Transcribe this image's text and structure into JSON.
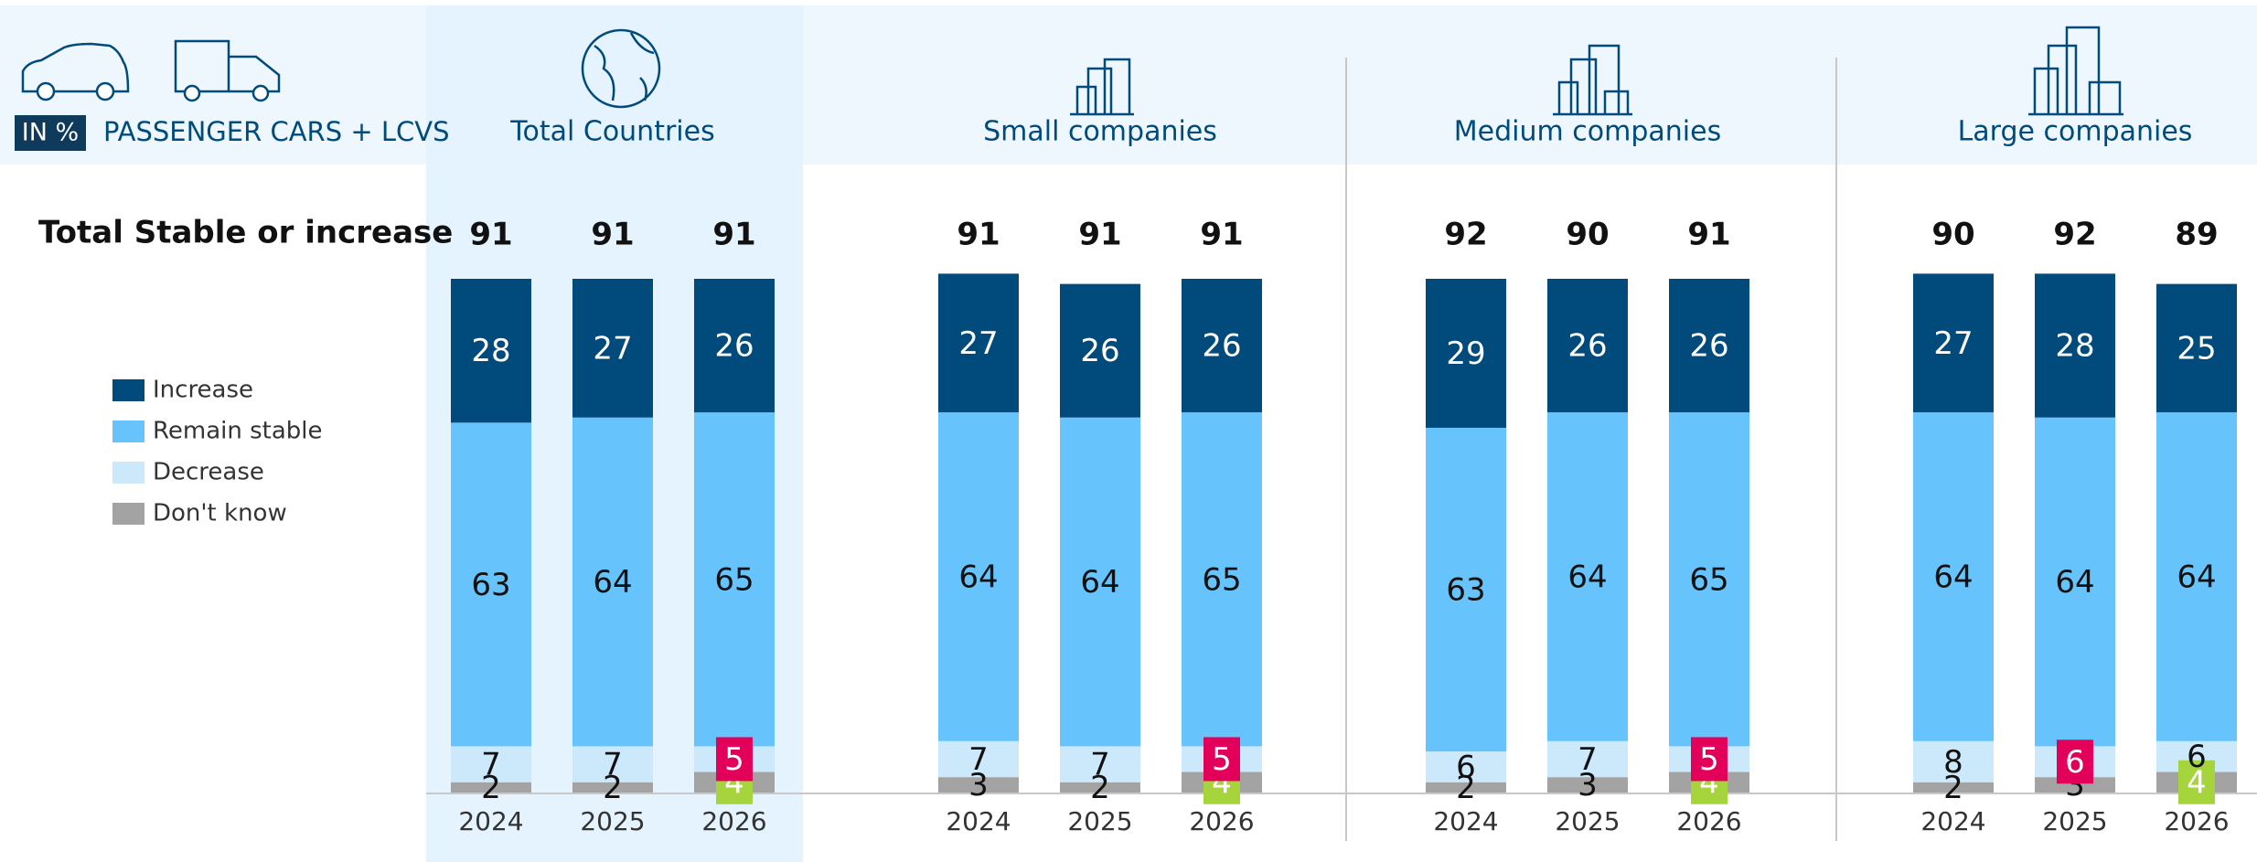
{
  "header": {
    "unit": "IN %",
    "label": "PASSENGER CARS + LCVS",
    "total_label": "Total Stable or increase"
  },
  "chart_data": [
    {
      "type": "bar",
      "title": "Total Countries",
      "categories": [
        "2024",
        "2025",
        "2026"
      ],
      "ylim": [
        0,
        100
      ],
      "totals": [
        91,
        91,
        91
      ],
      "series": [
        {
          "name": "Don't know",
          "color": "#a3a3a3",
          "values": [
            2,
            2,
            4
          ],
          "label_backgrounds": [
            null,
            null,
            "#a6d43c"
          ]
        },
        {
          "name": "Decrease",
          "color": "#cce9fb",
          "values": [
            7,
            7,
            5
          ],
          "label_backgrounds": [
            null,
            null,
            "#e2005a"
          ]
        },
        {
          "name": "Remain stable",
          "color": "#66c3fb",
          "values": [
            63,
            64,
            65
          ]
        },
        {
          "name": "Increase",
          "color": "#004b7c",
          "values": [
            28,
            27,
            26
          ]
        }
      ]
    },
    {
      "type": "bar",
      "title": "Small companies",
      "categories": [
        "2024",
        "2025",
        "2026"
      ],
      "ylim": [
        0,
        100
      ],
      "totals": [
        91,
        91,
        91
      ],
      "series": [
        {
          "name": "Don't know",
          "color": "#a3a3a3",
          "values": [
            3,
            2,
            4
          ],
          "label_backgrounds": [
            null,
            null,
            "#a6d43c"
          ]
        },
        {
          "name": "Decrease",
          "color": "#cce9fb",
          "values": [
            7,
            7,
            5
          ],
          "label_backgrounds": [
            null,
            null,
            "#e2005a"
          ]
        },
        {
          "name": "Remain stable",
          "color": "#66c3fb",
          "values": [
            64,
            64,
            65
          ]
        },
        {
          "name": "Increase",
          "color": "#004b7c",
          "values": [
            27,
            26,
            26
          ]
        }
      ]
    },
    {
      "type": "bar",
      "title": "Medium companies",
      "categories": [
        "2024",
        "2025",
        "2026"
      ],
      "ylim": [
        0,
        100
      ],
      "totals": [
        92,
        90,
        91
      ],
      "series": [
        {
          "name": "Don't know",
          "color": "#a3a3a3",
          "values": [
            2,
            3,
            4
          ],
          "label_backgrounds": [
            null,
            null,
            "#a6d43c"
          ]
        },
        {
          "name": "Decrease",
          "color": "#cce9fb",
          "values": [
            6,
            7,
            5
          ],
          "label_backgrounds": [
            null,
            null,
            "#e2005a"
          ]
        },
        {
          "name": "Remain stable",
          "color": "#66c3fb",
          "values": [
            63,
            64,
            65
          ]
        },
        {
          "name": "Increase",
          "color": "#004b7c",
          "values": [
            29,
            26,
            26
          ]
        }
      ]
    },
    {
      "type": "bar",
      "title": "Large companies",
      "categories": [
        "2024",
        "2025",
        "2026"
      ],
      "ylim": [
        0,
        100
      ],
      "totals": [
        90,
        92,
        89
      ],
      "series": [
        {
          "name": "Don't know",
          "color": "#a3a3a3",
          "values": [
            2,
            3,
            4
          ],
          "label_backgrounds": [
            null,
            null,
            "#a6d43c"
          ]
        },
        {
          "name": "Decrease",
          "color": "#cce9fb",
          "values": [
            8,
            6,
            6
          ],
          "label_backgrounds": [
            null,
            "#e2005a",
            null
          ]
        },
        {
          "name": "Remain stable",
          "color": "#66c3fb",
          "values": [
            64,
            64,
            64
          ]
        },
        {
          "name": "Increase",
          "color": "#004b7c",
          "values": [
            27,
            28,
            25
          ]
        }
      ]
    }
  ]
}
